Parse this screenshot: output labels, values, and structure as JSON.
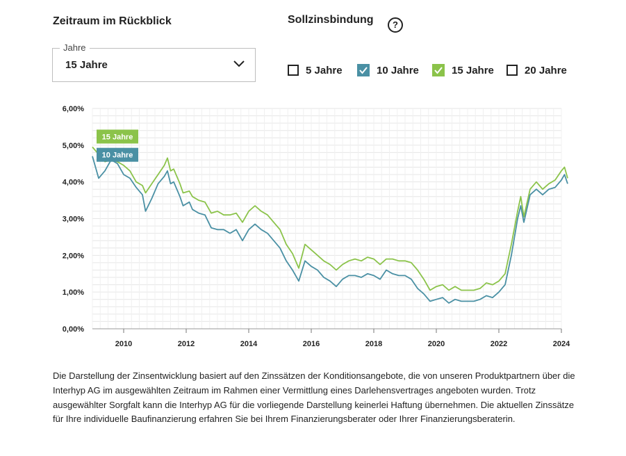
{
  "period": {
    "heading": "Zeitraum im Rückblick",
    "select_label": "Jahre",
    "select_value": "15 Jahre"
  },
  "binding": {
    "heading": "Sollzinsbindung",
    "help_glyph": "?",
    "options": [
      {
        "label": "5 Jahre",
        "checked": false,
        "color": ""
      },
      {
        "label": "10 Jahre",
        "checked": true,
        "color": "#4a90a4"
      },
      {
        "label": "15 Jahre",
        "checked": true,
        "color": "#8bc34a"
      },
      {
        "label": "20 Jahre",
        "checked": false,
        "color": ""
      }
    ]
  },
  "chart_data": {
    "type": "line",
    "x_range": [
      2009.0,
      2024.0
    ],
    "ylim": [
      0,
      6
    ],
    "y_ticks": [
      "0,00%",
      "1,00%",
      "2,00%",
      "3,00%",
      "4,00%",
      "5,00%",
      "6,00%"
    ],
    "x_ticks": [
      "2010",
      "2012",
      "2014",
      "2016",
      "2018",
      "2020",
      "2022",
      "2024"
    ],
    "grid": true,
    "legend": "tooltip badges at start of lines",
    "series": [
      {
        "name": "15 Jahre",
        "color": "#8bc34a",
        "points": [
          [
            2009.0,
            4.95
          ],
          [
            2009.2,
            4.75
          ],
          [
            2009.4,
            4.55
          ],
          [
            2009.6,
            4.6
          ],
          [
            2009.8,
            4.55
          ],
          [
            2010.0,
            4.45
          ],
          [
            2010.2,
            4.3
          ],
          [
            2010.4,
            4.0
          ],
          [
            2010.6,
            3.9
          ],
          [
            2010.7,
            3.7
          ],
          [
            2010.9,
            3.95
          ],
          [
            2011.1,
            4.2
          ],
          [
            2011.3,
            4.45
          ],
          [
            2011.4,
            4.65
          ],
          [
            2011.5,
            4.3
          ],
          [
            2011.6,
            4.35
          ],
          [
            2011.8,
            3.95
          ],
          [
            2011.9,
            3.7
          ],
          [
            2012.1,
            3.75
          ],
          [
            2012.2,
            3.6
          ],
          [
            2012.4,
            3.5
          ],
          [
            2012.6,
            3.45
          ],
          [
            2012.8,
            3.15
          ],
          [
            2013.0,
            3.2
          ],
          [
            2013.2,
            3.1
          ],
          [
            2013.4,
            3.1
          ],
          [
            2013.6,
            3.15
          ],
          [
            2013.8,
            2.9
          ],
          [
            2014.0,
            3.2
          ],
          [
            2014.2,
            3.35
          ],
          [
            2014.4,
            3.2
          ],
          [
            2014.6,
            3.1
          ],
          [
            2014.8,
            2.9
          ],
          [
            2015.0,
            2.7
          ],
          [
            2015.2,
            2.3
          ],
          [
            2015.4,
            2.05
          ],
          [
            2015.6,
            1.65
          ],
          [
            2015.8,
            2.3
          ],
          [
            2016.0,
            2.15
          ],
          [
            2016.2,
            2.0
          ],
          [
            2016.4,
            1.85
          ],
          [
            2016.6,
            1.75
          ],
          [
            2016.8,
            1.6
          ],
          [
            2017.0,
            1.75
          ],
          [
            2017.2,
            1.85
          ],
          [
            2017.4,
            1.9
          ],
          [
            2017.6,
            1.85
          ],
          [
            2017.8,
            1.95
          ],
          [
            2018.0,
            1.9
          ],
          [
            2018.2,
            1.75
          ],
          [
            2018.4,
            1.9
          ],
          [
            2018.6,
            1.9
          ],
          [
            2018.8,
            1.85
          ],
          [
            2019.0,
            1.85
          ],
          [
            2019.2,
            1.8
          ],
          [
            2019.4,
            1.6
          ],
          [
            2019.6,
            1.35
          ],
          [
            2019.8,
            1.05
          ],
          [
            2020.0,
            1.15
          ],
          [
            2020.2,
            1.2
          ],
          [
            2020.4,
            1.05
          ],
          [
            2020.6,
            1.15
          ],
          [
            2020.8,
            1.05
          ],
          [
            2021.0,
            1.05
          ],
          [
            2021.2,
            1.05
          ],
          [
            2021.4,
            1.1
          ],
          [
            2021.6,
            1.25
          ],
          [
            2021.8,
            1.2
          ],
          [
            2022.0,
            1.3
          ],
          [
            2022.2,
            1.5
          ],
          [
            2022.4,
            2.3
          ],
          [
            2022.6,
            3.2
          ],
          [
            2022.7,
            3.6
          ],
          [
            2022.8,
            3.05
          ],
          [
            2023.0,
            3.8
          ],
          [
            2023.2,
            4.0
          ],
          [
            2023.4,
            3.8
          ],
          [
            2023.6,
            3.95
          ],
          [
            2023.8,
            4.05
          ],
          [
            2024.0,
            4.3
          ],
          [
            2024.1,
            4.4
          ],
          [
            2024.2,
            4.1
          ]
        ]
      },
      {
        "name": "10 Jahre",
        "color": "#4a90a4",
        "points": [
          [
            2009.0,
            4.7
          ],
          [
            2009.2,
            4.1
          ],
          [
            2009.4,
            4.3
          ],
          [
            2009.6,
            4.6
          ],
          [
            2009.8,
            4.5
          ],
          [
            2010.0,
            4.2
          ],
          [
            2010.2,
            4.1
          ],
          [
            2010.4,
            3.85
          ],
          [
            2010.6,
            3.65
          ],
          [
            2010.7,
            3.2
          ],
          [
            2010.9,
            3.55
          ],
          [
            2011.1,
            3.95
          ],
          [
            2011.3,
            4.15
          ],
          [
            2011.4,
            4.3
          ],
          [
            2011.5,
            3.95
          ],
          [
            2011.6,
            4.0
          ],
          [
            2011.8,
            3.6
          ],
          [
            2011.9,
            3.35
          ],
          [
            2012.1,
            3.45
          ],
          [
            2012.2,
            3.25
          ],
          [
            2012.4,
            3.15
          ],
          [
            2012.6,
            3.1
          ],
          [
            2012.8,
            2.75
          ],
          [
            2013.0,
            2.7
          ],
          [
            2013.2,
            2.7
          ],
          [
            2013.4,
            2.6
          ],
          [
            2013.6,
            2.7
          ],
          [
            2013.8,
            2.4
          ],
          [
            2014.0,
            2.7
          ],
          [
            2014.2,
            2.85
          ],
          [
            2014.4,
            2.7
          ],
          [
            2014.6,
            2.6
          ],
          [
            2014.8,
            2.4
          ],
          [
            2015.0,
            2.2
          ],
          [
            2015.2,
            1.85
          ],
          [
            2015.4,
            1.6
          ],
          [
            2015.6,
            1.3
          ],
          [
            2015.8,
            1.85
          ],
          [
            2016.0,
            1.7
          ],
          [
            2016.2,
            1.6
          ],
          [
            2016.4,
            1.4
          ],
          [
            2016.6,
            1.3
          ],
          [
            2016.8,
            1.15
          ],
          [
            2017.0,
            1.35
          ],
          [
            2017.2,
            1.45
          ],
          [
            2017.4,
            1.45
          ],
          [
            2017.6,
            1.4
          ],
          [
            2017.8,
            1.5
          ],
          [
            2018.0,
            1.45
          ],
          [
            2018.2,
            1.35
          ],
          [
            2018.4,
            1.6
          ],
          [
            2018.6,
            1.5
          ],
          [
            2018.8,
            1.45
          ],
          [
            2019.0,
            1.45
          ],
          [
            2019.2,
            1.35
          ],
          [
            2019.4,
            1.1
          ],
          [
            2019.6,
            0.95
          ],
          [
            2019.8,
            0.75
          ],
          [
            2020.0,
            0.8
          ],
          [
            2020.2,
            0.85
          ],
          [
            2020.4,
            0.7
          ],
          [
            2020.6,
            0.8
          ],
          [
            2020.8,
            0.75
          ],
          [
            2021.0,
            0.75
          ],
          [
            2021.2,
            0.75
          ],
          [
            2021.4,
            0.8
          ],
          [
            2021.6,
            0.9
          ],
          [
            2021.8,
            0.85
          ],
          [
            2022.0,
            1.0
          ],
          [
            2022.2,
            1.2
          ],
          [
            2022.4,
            2.0
          ],
          [
            2022.6,
            3.0
          ],
          [
            2022.7,
            3.35
          ],
          [
            2022.8,
            2.9
          ],
          [
            2023.0,
            3.65
          ],
          [
            2023.2,
            3.8
          ],
          [
            2023.4,
            3.65
          ],
          [
            2023.6,
            3.8
          ],
          [
            2023.8,
            3.85
          ],
          [
            2024.0,
            4.05
          ],
          [
            2024.1,
            4.2
          ],
          [
            2024.2,
            3.95
          ]
        ]
      }
    ],
    "badges": [
      {
        "series": "15 Jahre",
        "label": "15 Jahre",
        "color": "#8bc34a"
      },
      {
        "series": "10 Jahre",
        "label": "10 Jahre",
        "color": "#4a90a4"
      }
    ]
  },
  "disclaimer": "Die Darstellung der Zinsentwicklung basiert auf den Zinssätzen der Konditionsangebote, die von unseren Produktpartnern über die Interhyp AG im ausgewählten Zeitraum im Rahmen einer Vermittlung eines Darlehensvertrages angeboten wurden. Trotz ausgewählter Sorgfalt kann die Interhyp AG für die vorliegende Darstellung keinerlei Haftung übernehmen. Die aktuellen Zinssätze für Ihre individuelle Baufinanzierung erfahren Sie bei Ihrem Finanzierungsberater oder Ihrer Finanzierungsberaterin."
}
